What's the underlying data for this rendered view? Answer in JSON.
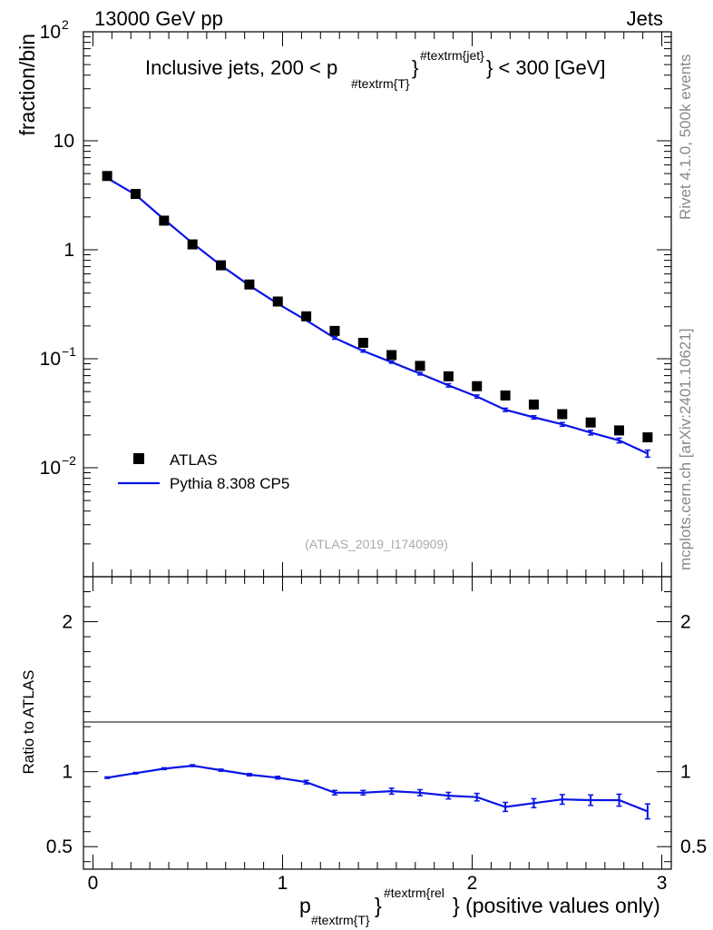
{
  "header": {
    "left": "13000 GeV pp",
    "right": "Jets"
  },
  "side_labels": {
    "rivet": "Rivet 4.1.0,  500k events",
    "mcplots": "mcplots.cern.ch [arXiv:2401.10621]"
  },
  "colors": {
    "mc": "#0a14e6",
    "data": "#000000",
    "watermark": "#aaaaaa"
  },
  "chart_data": [
    {
      "type": "scatter",
      "panel": "main",
      "title_main": "Inclusive jets, 200 < p",
      "title_sub": "#textrm{T}",
      "title_sup": "#textrm{jet}",
      "title_end": "} < 300 [GeV]",
      "ylabel": "fraction/bin",
      "yscale": "log",
      "ylim": [
        0.001,
        100
      ],
      "yticks": [
        {
          "value": 100,
          "base": "10",
          "exp": "2"
        },
        {
          "value": 10,
          "base": "10",
          "exp": ""
        },
        {
          "value": 1,
          "base": "1",
          "exp": ""
        },
        {
          "value": 0.1,
          "base": "10",
          "exp": "−1"
        },
        {
          "value": 0.01,
          "base": "10",
          "exp": "−2"
        }
      ],
      "xlim": [
        -0.05,
        3.05
      ],
      "x": [
        0.075,
        0.225,
        0.375,
        0.525,
        0.675,
        0.825,
        0.975,
        1.125,
        1.275,
        1.425,
        1.575,
        1.725,
        1.875,
        2.025,
        2.175,
        2.325,
        2.475,
        2.625,
        2.775,
        2.925
      ],
      "series": [
        {
          "name": "ATLAS",
          "marker": "square",
          "values": [
            4.75,
            3.25,
            1.85,
            1.12,
            0.72,
            0.48,
            0.335,
            0.245,
            0.18,
            0.14,
            0.108,
            0.086,
            0.069,
            0.056,
            0.046,
            0.038,
            0.031,
            0.026,
            0.022,
            0.019
          ]
        },
        {
          "name": "Pythia 8.308 CP5",
          "marker": "line",
          "values": [
            4.55,
            3.2,
            1.9,
            1.15,
            0.72,
            0.47,
            0.32,
            0.225,
            0.155,
            0.118,
            0.093,
            0.073,
            0.057,
            0.045,
            0.034,
            0.029,
            0.025,
            0.021,
            0.0178,
            0.0135
          ],
          "errors": [
            0,
            0,
            0,
            0,
            0,
            0,
            0,
            0,
            0.004,
            0.003,
            0.002,
            0.002,
            0.002,
            0.0015,
            0.0012,
            0.001,
            0.001,
            0.001,
            0.0009,
            0.001
          ]
        }
      ],
      "watermark": "(ATLAS_2019_I1740909)"
    },
    {
      "type": "line",
      "panel": "ratio",
      "ylabel": "Ratio to ATLAS",
      "ylim": [
        0.35,
        2.3
      ],
      "yticks": [
        {
          "value": 0.5,
          "label": "0.5"
        },
        {
          "value": 1,
          "label": "1"
        },
        {
          "value": 2,
          "label": "2"
        }
      ],
      "xlim": [
        -0.05,
        3.05
      ],
      "xticks": [
        {
          "value": 0,
          "label": "0"
        },
        {
          "value": 1,
          "label": "1"
        },
        {
          "value": 2,
          "label": "2"
        },
        {
          "value": 3,
          "label": "3"
        }
      ],
      "xlabel_main": "p",
      "xlabel_sub": "#textrm{T}",
      "xlabel_sup": "#textrm{rel",
      "xlabel_end": "} (positive values only)",
      "x": [
        0.075,
        0.225,
        0.375,
        0.525,
        0.675,
        0.825,
        0.975,
        1.125,
        1.275,
        1.425,
        1.575,
        1.725,
        1.875,
        2.025,
        2.175,
        2.325,
        2.475,
        2.625,
        2.775,
        2.925
      ],
      "values": [
        0.96,
        0.99,
        1.02,
        1.04,
        1.01,
        0.98,
        0.96,
        0.93,
        0.86,
        0.86,
        0.87,
        0.86,
        0.84,
        0.83,
        0.765,
        0.79,
        0.815,
        0.81,
        0.81,
        0.735
      ],
      "errors": [
        0.005,
        0.005,
        0.006,
        0.006,
        0.007,
        0.008,
        0.009,
        0.012,
        0.015,
        0.015,
        0.02,
        0.02,
        0.022,
        0.025,
        0.03,
        0.03,
        0.032,
        0.035,
        0.04,
        0.05
      ]
    }
  ],
  "legend": {
    "data_label": "ATLAS",
    "mc_label": "Pythia 8.308 CP5"
  }
}
